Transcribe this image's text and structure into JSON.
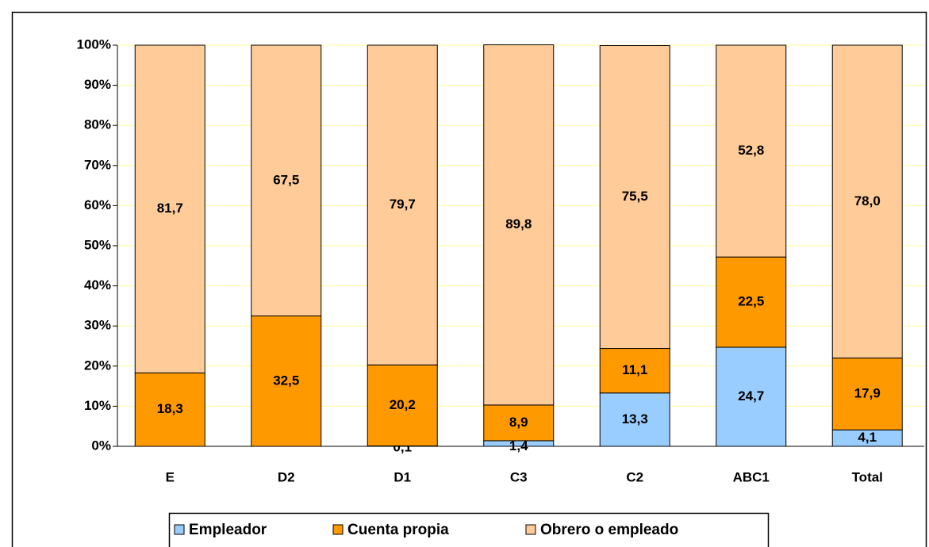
{
  "chart_data": {
    "type": "stacked_bar",
    "categories": [
      "E",
      "D2",
      "D1",
      "C3",
      "C2",
      "ABC1",
      "Total"
    ],
    "series": [
      {
        "name": "Empleador",
        "color": "#99ccff",
        "values": [
          0,
          0,
          0.1,
          1.4,
          13.3,
          24.7,
          4.1
        ],
        "value_labels": [
          null,
          null,
          "0,1",
          "1,4",
          "13,3",
          "24,7",
          "4,1"
        ]
      },
      {
        "name": "Cuenta propia",
        "color": "#ff9900",
        "values": [
          18.3,
          32.5,
          20.2,
          8.9,
          11.1,
          22.5,
          17.9
        ],
        "value_labels": [
          "18,3",
          "32,5",
          "20,2",
          "8,9",
          "11,1",
          "22,5",
          "17,9"
        ]
      },
      {
        "name": "Obrero o empleado",
        "color": "#ffcc99",
        "values": [
          81.7,
          67.5,
          79.7,
          89.8,
          75.5,
          52.8,
          78.0
        ],
        "value_labels": [
          "81,7",
          "67,5",
          "79,7",
          "89,8",
          "75,5",
          "52,8",
          "78,0"
        ]
      }
    ],
    "ylim": [
      0,
      100
    ],
    "yticks": [
      {
        "value": 0,
        "label": "0%"
      },
      {
        "value": 10,
        "label": "10%"
      },
      {
        "value": 20,
        "label": "20%"
      },
      {
        "value": 30,
        "label": "30%"
      },
      {
        "value": 40,
        "label": "40%"
      },
      {
        "value": 50,
        "label": "50%"
      },
      {
        "value": 60,
        "label": "60%"
      },
      {
        "value": 70,
        "label": "70%"
      },
      {
        "value": 80,
        "label": "80%"
      },
      {
        "value": 90,
        "label": "90%"
      },
      {
        "value": 100,
        "label": "100%"
      }
    ],
    "grid": true,
    "legend": "bottom"
  }
}
